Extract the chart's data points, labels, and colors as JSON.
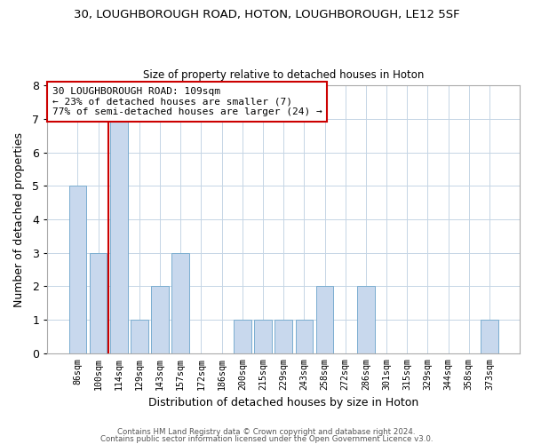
{
  "title1": "30, LOUGHBOROUGH ROAD, HOTON, LOUGHBOROUGH, LE12 5SF",
  "title2": "Size of property relative to detached houses in Hoton",
  "xlabel": "Distribution of detached houses by size in Hoton",
  "ylabel": "Number of detached properties",
  "bins": [
    "86sqm",
    "100sqm",
    "114sqm",
    "129sqm",
    "143sqm",
    "157sqm",
    "172sqm",
    "186sqm",
    "200sqm",
    "215sqm",
    "229sqm",
    "243sqm",
    "258sqm",
    "272sqm",
    "286sqm",
    "301sqm",
    "315sqm",
    "329sqm",
    "344sqm",
    "358sqm",
    "373sqm"
  ],
  "counts": [
    5,
    3,
    7,
    1,
    2,
    3,
    0,
    0,
    1,
    1,
    1,
    1,
    2,
    0,
    2,
    0,
    0,
    0,
    0,
    0,
    1
  ],
  "bar_color": "#c8d8ed",
  "bar_edge_color": "#7aadd0",
  "ref_line_color": "#cc0000",
  "annotation_text": "30 LOUGHBOROUGH ROAD: 109sqm\n← 23% of detached houses are smaller (7)\n77% of semi-detached houses are larger (24) →",
  "annotation_box_edge": "#cc0000",
  "ylim": [
    0,
    8
  ],
  "yticks": [
    0,
    1,
    2,
    3,
    4,
    5,
    6,
    7,
    8
  ],
  "footer1": "Contains HM Land Registry data © Crown copyright and database right 2024.",
  "footer2": "Contains public sector information licensed under the Open Government Licence v3.0.",
  "bg_color": "#ffffff",
  "grid_color": "#c5d5e5"
}
